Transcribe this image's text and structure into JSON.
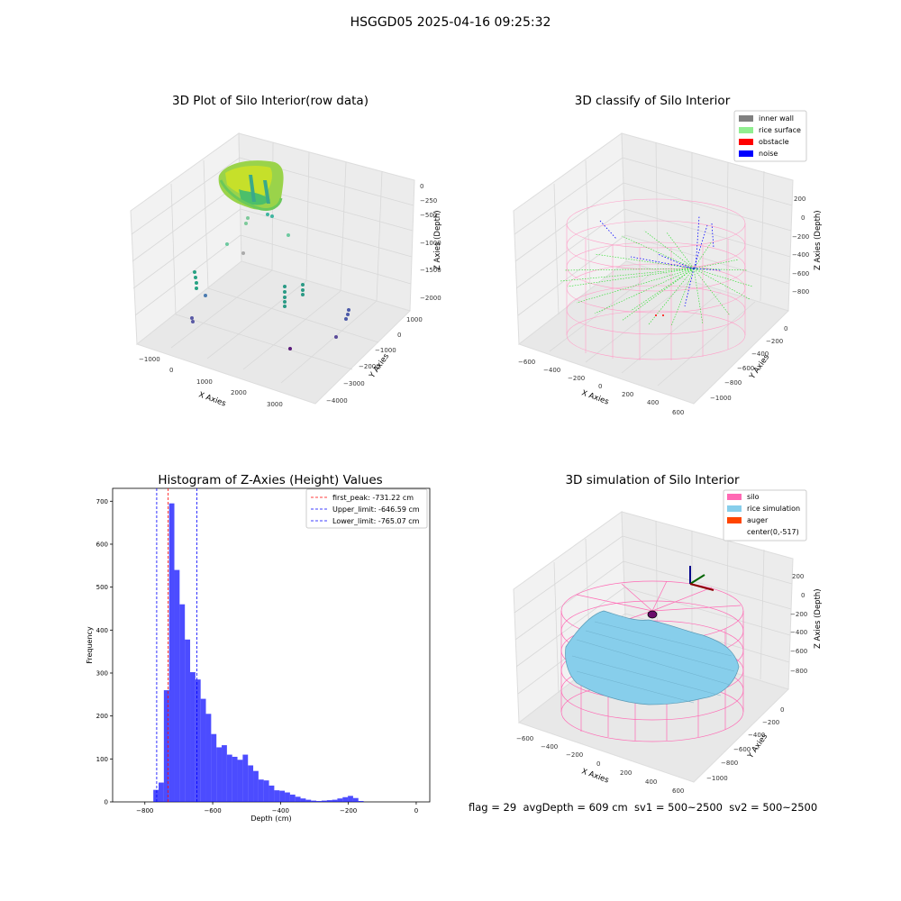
{
  "figure": {
    "suptitle": "HSGGD05 2025-04-16 09:25:32",
    "footer": "flag = 29  avgDepth = 609 cm  sv1 = 500~2500  sv2 = 500~2500"
  },
  "panels": {
    "raw": {
      "title": "3D Plot of Silo Interior(row data)",
      "xlabel": "X Axies",
      "ylabel": "Y Axies",
      "zlabel": "Z Axies (Depth)",
      "xticks": [
        "−1000",
        "0",
        "1000",
        "2000",
        "3000"
      ],
      "yticks": [
        "1000",
        "0",
        "−1000",
        "−2000",
        "−3000",
        "−4000"
      ],
      "zticks": [
        "0",
        "−250",
        "−500",
        "−750",
        "−1000",
        "−1250",
        "−1500",
        "−1750",
        "−2000"
      ]
    },
    "classify": {
      "title": "3D classify of Silo Interior",
      "xlabel": "X Axies",
      "ylabel": "Y Axies",
      "zlabel": "Z Axies (Depth)",
      "xticks": [
        "−600",
        "−400",
        "−200",
        "0",
        "200",
        "400",
        "600"
      ],
      "yticks": [
        "0",
        "−200",
        "−400",
        "−600",
        "−800",
        "−1000"
      ],
      "zticks": [
        "200",
        "0",
        "−200",
        "−400",
        "−600",
        "−800"
      ],
      "legend": [
        {
          "label": "inner wall",
          "color": "#808080"
        },
        {
          "label": "rice surface",
          "color": "#90ee90"
        },
        {
          "label": "obstacle",
          "color": "#ff0000"
        },
        {
          "label": "noise",
          "color": "#0000ff"
        }
      ]
    },
    "simulation": {
      "title": "3D simulation of Silo Interior",
      "xlabel": "X Axies",
      "ylabel": "Y Axies",
      "zlabel": "Z Axies (Depth)",
      "xticks": [
        "−600",
        "−400",
        "−200",
        "0",
        "200",
        "400",
        "600"
      ],
      "yticks": [
        "0",
        "−200",
        "−400",
        "−600",
        "−800",
        "−1000"
      ],
      "zticks": [
        "200",
        "0",
        "−200",
        "−400",
        "−600",
        "−800"
      ],
      "legend": [
        {
          "label": "silo",
          "color": "#ff69b4"
        },
        {
          "label": "rice simulation",
          "color": "#87ceeb"
        },
        {
          "label": "auger",
          "color": "#ff4500"
        },
        {
          "label": "center(0,-517)",
          "color": "#ffffff"
        }
      ]
    }
  },
  "chart_data": [
    {
      "type": "bar",
      "title": "Histogram of Z-Axies (Height) Values",
      "xlabel": "Depth (cm)",
      "ylabel": "Frequency",
      "xlim": [
        -895,
        40
      ],
      "ylim": [
        0,
        730
      ],
      "xticks": [
        -800,
        -600,
        -400,
        -200,
        0
      ],
      "yticks": [
        0,
        100,
        200,
        300,
        400,
        500,
        600,
        700
      ],
      "bin_width": 15.5,
      "bin_start": -775,
      "values": [
        28,
        45,
        260,
        695,
        540,
        460,
        378,
        302,
        285,
        240,
        205,
        158,
        127,
        132,
        110,
        105,
        98,
        110,
        85,
        72,
        52,
        50,
        38,
        27,
        26,
        22,
        17,
        12,
        8,
        5,
        3,
        2,
        3,
        4,
        5,
        8,
        11,
        14,
        9,
        2
      ],
      "bar_color": "#0000ff",
      "vlines": [
        {
          "x": -731.22,
          "label": "first_peak: -731.22 cm",
          "color": "#ff0000"
        },
        {
          "x": -646.59,
          "label": "Upper_limit: -646.59 cm",
          "color": "#0000ff"
        },
        {
          "x": -765.07,
          "label": "Lower_limit: -765.07 cm",
          "color": "#0000ff"
        }
      ],
      "legend_position": "top-right"
    }
  ]
}
